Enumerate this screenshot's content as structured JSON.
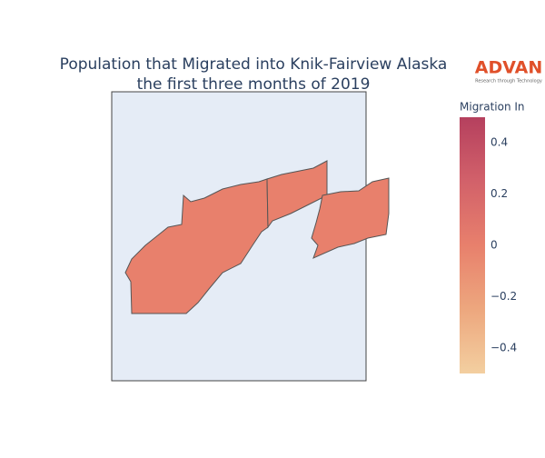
{
  "chart_data": {
    "type": "choropleth",
    "title": [
      "Population that Migrated into Knik-Fairview Alaska",
      "the first three months of 2019"
    ],
    "logo": {
      "name": "ADVAN",
      "tagline": "Research through Technology"
    },
    "values": [
      0,
      0,
      0
    ],
    "colorbar_title": "Migration In",
    "zlim": [
      -0.5,
      0.5
    ],
    "zticks": [
      {
        "value": 0.4,
        "label": "0.4"
      },
      {
        "value": 0.2,
        "label": "0.2"
      },
      0,
      {
        "value": -0.2,
        "label": "−0.2"
      },
      {
        "value": -0.4,
        "label": "−0.4"
      }
    ],
    "colorscale": [
      "#f3cfa0",
      "#eda77e",
      "#e8806c",
      "#d2616a",
      "#b5405e"
    ],
    "background": "#e5ecf6"
  }
}
